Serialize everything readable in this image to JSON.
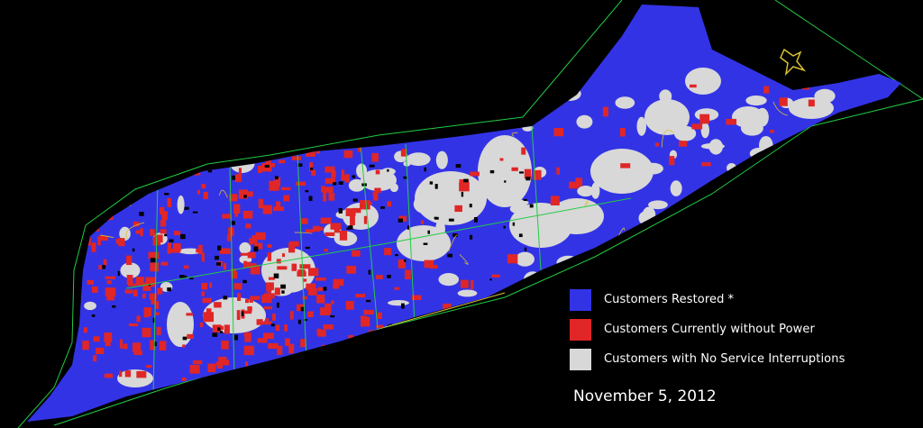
{
  "colors": {
    "restored": "#3333e6",
    "without_power": "#e02626",
    "no_interruption": "#d8d8d8",
    "boundary_green": "#22cc44",
    "boundary_yellow": "#d8c030",
    "background": "#000000"
  },
  "legend": {
    "items": [
      {
        "label": "Customers Restored",
        "marker": "*",
        "color_key": "restored"
      },
      {
        "label": "Customers Currently without Power",
        "color_key": "without_power"
      },
      {
        "label": "Customers with No Service Interruptions",
        "color_key": "no_interruption"
      }
    ]
  },
  "date": "November 5, 2012"
}
